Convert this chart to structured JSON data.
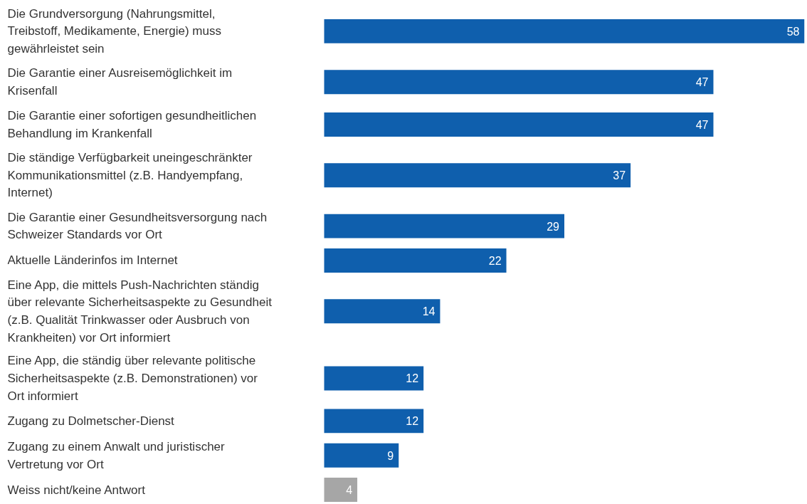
{
  "chart_data": {
    "type": "bar",
    "orientation": "horizontal",
    "data_labels": true,
    "categories": [
      "Die Grundversorgung (Nahrungsmittel, Treibstoff, Medikamente, Energie) muss gewährleistet sein",
      "Die Garantie einer Ausreisemöglichkeit im Krisenfall",
      "Die Garantie einer sofortigen gesundheitlichen Behandlung im Krankenfall",
      "Die ständige Verfügbarkeit uneingeschränkter Kommunikationsmittel (z.B. Handyempfang, Internet)",
      "Die Garantie einer Gesundheitsversorgung nach Schweizer Standards vor Ort",
      "Aktuelle Länderinfos im Internet",
      "Eine App, die mittels Push-Nachrichten ständig über relevante Sicherheitsaspekte zu Gesundheit (z.B. Qualität Trinkwasser oder Ausbruch von Krankheiten) vor Ort informiert",
      "Eine App, die ständig über relevante politische Sicherheitsaspekte (z.B. Demonstrationen) vor Ort informiert",
      "Zugang zu Dolmetscher-Dienst",
      "Zugang zu einem Anwalt und juristischer Vertretung vor Ort",
      "Weiss nicht/keine Antwort"
    ],
    "values": [
      58,
      47,
      47,
      37,
      29,
      22,
      14,
      12,
      12,
      9,
      4
    ],
    "colors": [
      "#0f5fad",
      "#0f5fad",
      "#0f5fad",
      "#0f5fad",
      "#0f5fad",
      "#0f5fad",
      "#0f5fad",
      "#0f5fad",
      "#0f5fad",
      "#0f5fad",
      "#a6a6a6"
    ]
  }
}
